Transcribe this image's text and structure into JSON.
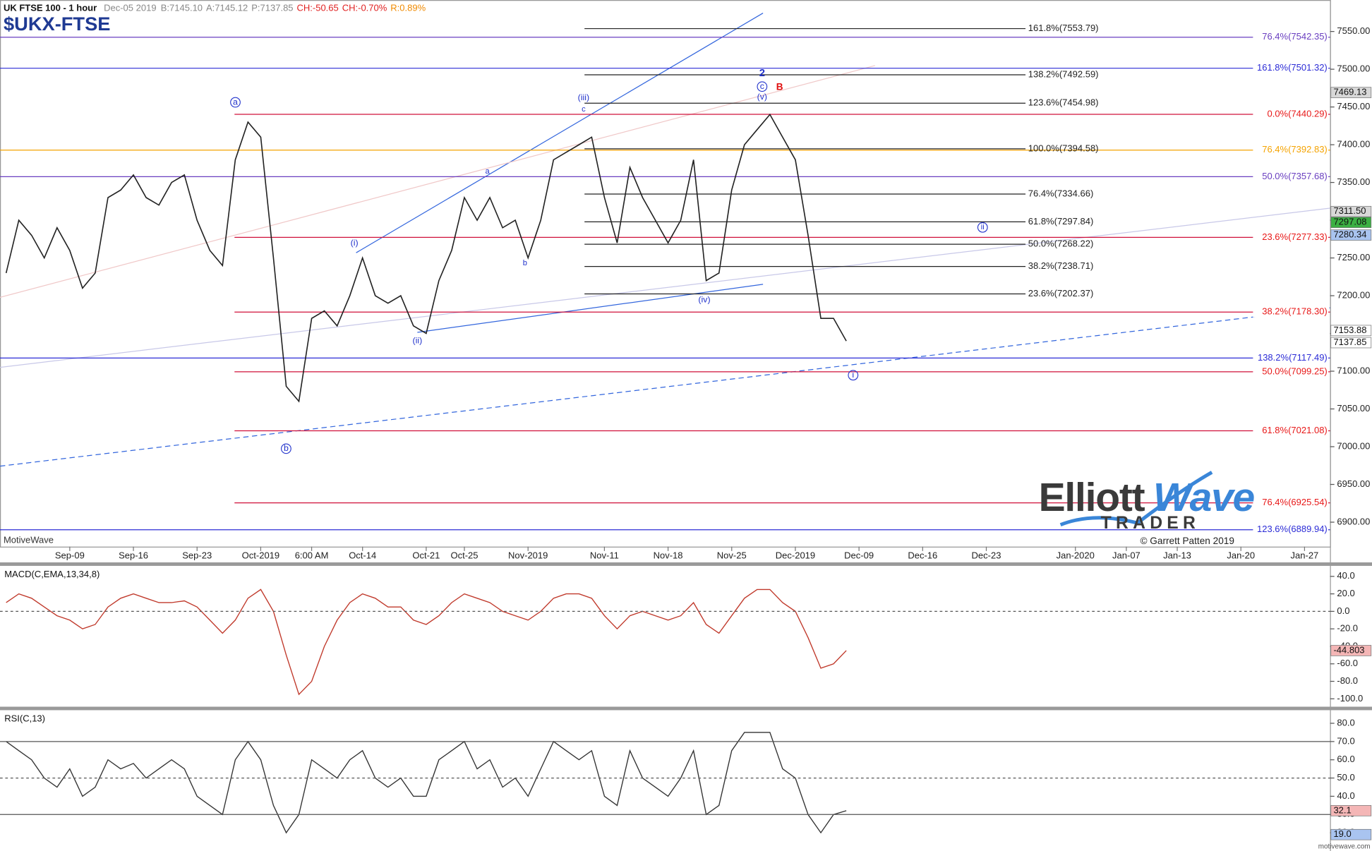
{
  "header": {
    "instrument": "UK FTSE 100 - 1 hour",
    "date": "Dec-05 2019",
    "bid": "B:7145.10",
    "ask": "A:7145.12",
    "price": "P:7137.85",
    "change": "CH:-50.65",
    "change_pct": "CH:-0.70%",
    "range": "R:0.89%"
  },
  "footer": "motivewave.com",
  "chart_data": [
    {
      "type": "line",
      "title": "$UKX-FTSE",
      "color": "#222222",
      "categories": [
        null,
        null,
        null,
        null,
        null,
        "Sep-09",
        null,
        null,
        null,
        null,
        "Sep-16",
        null,
        null,
        null,
        null,
        "Sep-23",
        null,
        null,
        null,
        null,
        "Oct-2019",
        null,
        null,
        null,
        "6:00 AM",
        null,
        null,
        null,
        "Oct-14",
        null,
        null,
        null,
        null,
        "Oct-21",
        null,
        null,
        "Oct-25",
        null,
        null,
        null,
        null,
        "Nov-2019",
        null,
        null,
        null,
        null,
        null,
        "Nov-11",
        null,
        null,
        null,
        null,
        "Nov-18",
        null,
        null,
        null,
        null,
        "Nov-25",
        null,
        null,
        null,
        null,
        "Dec-2019",
        null,
        null,
        null,
        null,
        "Dec-09",
        null,
        null,
        null,
        null,
        "Dec-16",
        null,
        null,
        null,
        null,
        "Dec-23",
        null,
        null,
        null,
        null,
        null,
        null,
        "Jan-2020",
        null,
        null,
        null,
        "Jan-07",
        null,
        null,
        null,
        "Jan-13",
        null,
        null,
        null,
        null,
        "Jan-20",
        null,
        null,
        null,
        null,
        "Jan-27",
        null
      ],
      "values": [
        7230,
        7300,
        7280,
        7250,
        7290,
        7260,
        7210,
        7230,
        7330,
        7340,
        7360,
        7330,
        7320,
        7350,
        7360,
        7300,
        7260,
        7240,
        7380,
        7430,
        7410,
        7250,
        7080,
        7060,
        7170,
        7180,
        7160,
        7200,
        7250,
        7200,
        7190,
        7200,
        7160,
        7150,
        7220,
        7260,
        7330,
        7300,
        7330,
        7290,
        7300,
        7250,
        7300,
        7380,
        7390,
        7400,
        7410,
        7330,
        7270,
        7370,
        7330,
        7300,
        7270,
        7300,
        7380,
        7220,
        7230,
        7340,
        7400,
        7420,
        7440,
        7410,
        7380,
        7280,
        7170,
        7170,
        7140,
        null,
        null,
        null,
        null,
        null,
        null,
        null,
        null,
        null,
        null,
        null,
        null,
        null,
        null,
        null,
        null,
        null,
        null,
        null,
        null,
        null,
        null,
        null,
        null,
        null,
        null,
        null,
        null,
        null,
        null,
        null,
        null,
        null,
        null,
        null,
        null,
        null
      ],
      "ylim": [
        6867.6,
        7591.7
      ],
      "yticks": [
        {
          "value": 6900,
          "label": "6900.00"
        },
        {
          "value": 6950,
          "label": "6950.00"
        },
        {
          "value": 7000,
          "label": "7000.00"
        },
        {
          "value": 7050,
          "label": "7050.00"
        },
        {
          "value": 7100,
          "label": "7100.00"
        },
        {
          "value": 7150,
          "label": "7150.00"
        },
        {
          "value": 7200,
          "label": "7200.00"
        },
        {
          "value": 7250,
          "label": "7250.00"
        },
        {
          "value": 7300,
          "label": "7300.00"
        },
        {
          "value": 7350,
          "label": "7350.00"
        },
        {
          "value": 7400,
          "label": "7400.00"
        },
        {
          "value": 7450,
          "label": "7450.00"
        },
        {
          "value": 7500,
          "label": "7500.00"
        },
        {
          "value": 7550,
          "label": "7550.00"
        }
      ],
      "levels": [
        {
          "value": 7542.35,
          "label": "76.4%(7542.35)",
          "color": "#6a3fc0"
        },
        {
          "value": 7501.32,
          "label": "161.8%(7501.32)",
          "color": "#2b2bd6"
        },
        {
          "value": 7440.29,
          "label": "0.0%(7440.29)",
          "color": "#d0103a"
        },
        {
          "value": 7392.83,
          "label": "76.4%(7392.83)",
          "color": "#f5a300"
        },
        {
          "value": 7357.68,
          "label": "50.0%(7357.68)",
          "color": "#6a3fc0"
        },
        {
          "value": 7277.33,
          "label": "23.6%(7277.33)",
          "color": "#d0103a"
        },
        {
          "value": 7178.3,
          "label": "38.2%(7178.30)",
          "color": "#d0103a"
        },
        {
          "value": 7117.49,
          "label": "138.2%(7117.49)",
          "color": "#2b2bd6"
        },
        {
          "value": 7099.25,
          "label": "50.0%(7099.25)",
          "color": "#d0103a"
        },
        {
          "value": 7021.08,
          "label": "61.8%(7021.08)",
          "color": "#d0103a"
        },
        {
          "value": 6925.54,
          "label": "76.4%(6925.54)",
          "color": "#d0103a"
        },
        {
          "value": 6889.94,
          "label": "123.6%(6889.94)",
          "color": "#2b2bd6"
        }
      ],
      "fib_levels": [
        {
          "value": 7553.79,
          "label": "161.8%(7553.79)"
        },
        {
          "value": 7492.59,
          "label": "138.2%(7492.59)"
        },
        {
          "value": 7454.98,
          "label": "123.6%(7454.98)"
        },
        {
          "value": 7394.58,
          "label": "100.0%(7394.58)"
        },
        {
          "value": 7334.66,
          "label": "76.4%(7334.66)"
        },
        {
          "value": 7297.84,
          "label": "61.8%(7297.84)"
        },
        {
          "value": 7268.22,
          "label": "50.0%(7268.22)"
        },
        {
          "value": 7238.71,
          "label": "38.2%(7238.71)"
        },
        {
          "value": 7202.37,
          "label": "23.6%(7202.37)"
        }
      ],
      "price_markers": [
        {
          "value": 7469.13,
          "label": "7469.13",
          "color": "#d8d8d8"
        },
        {
          "value": 7311.5,
          "label": "7311.50",
          "color": "#d8d8d8"
        },
        {
          "value": 7297.08,
          "label": "7297.08",
          "color": "#3cb043"
        },
        {
          "value": 7280.34,
          "label": "7280.34",
          "color": "#a9c4f0"
        },
        {
          "value": 7153.88,
          "label": "7153.88",
          "color": "#ffffff"
        },
        {
          "value": 7137.85,
          "label": "7137.85",
          "color": "#ffffff"
        }
      ],
      "annotations": [
        "a",
        "b",
        "(i)",
        "(ii)",
        "(iii)",
        "(iv)",
        "(v)",
        "c",
        "2",
        "B",
        "i",
        "ii",
        "a",
        "b",
        "c"
      ],
      "watermark": "MotiveWave",
      "logo": [
        "Elliott",
        "Wave",
        "TRADER"
      ],
      "copyright": "© Garrett Patten 2019"
    },
    {
      "type": "line",
      "title": "MACD(C,EMA,13,34,8)",
      "color": "#c0392b",
      "values": [
        10,
        20,
        15,
        5,
        -5,
        -10,
        -20,
        -15,
        5,
        15,
        20,
        15,
        10,
        10,
        12,
        5,
        -10,
        -25,
        -10,
        15,
        25,
        0,
        -50,
        -95,
        -80,
        -40,
        -10,
        10,
        20,
        15,
        5,
        5,
        -10,
        -15,
        -5,
        10,
        20,
        15,
        10,
        0,
        -5,
        -10,
        0,
        15,
        20,
        20,
        15,
        -5,
        -20,
        -5,
        0,
        -5,
        -10,
        -5,
        10,
        -15,
        -25,
        -5,
        15,
        25,
        25,
        10,
        0,
        -30,
        -65,
        -60,
        -44.8
      ],
      "ylim": [
        -109,
        51
      ],
      "yticks": [
        {
          "value": 40,
          "label": "40.0"
        },
        {
          "value": 20,
          "label": "20.0"
        },
        {
          "value": 0,
          "label": "0.0"
        },
        {
          "value": -20,
          "label": "-20.0"
        },
        {
          "value": -40,
          "label": "-40.0"
        },
        {
          "value": -60,
          "label": "-60.0"
        },
        {
          "value": -80,
          "label": "-80.0"
        },
        {
          "value": -100,
          "label": "-100.0"
        }
      ],
      "ref_lines": [
        {
          "value": 0,
          "style": "dashed"
        }
      ],
      "price_markers": [
        {
          "value": -44.803,
          "label": "-44.803",
          "color": "#f4b6b6"
        }
      ]
    },
    {
      "type": "line",
      "title": "RSI(C,13)",
      "color": "#333333",
      "values": [
        70,
        65,
        60,
        50,
        45,
        55,
        40,
        45,
        60,
        55,
        58,
        50,
        55,
        60,
        55,
        40,
        35,
        30,
        60,
        70,
        60,
        35,
        20,
        30,
        60,
        55,
        50,
        60,
        65,
        50,
        45,
        50,
        40,
        40,
        60,
        65,
        70,
        55,
        60,
        45,
        50,
        40,
        55,
        70,
        65,
        60,
        65,
        40,
        35,
        65,
        50,
        45,
        40,
        50,
        65,
        30,
        35,
        65,
        75,
        75,
        75,
        55,
        50,
        30,
        20,
        30,
        32.1
      ],
      "ylim": [
        12.4,
        86.7
      ],
      "yticks": [
        {
          "value": 20,
          "label": "20.0"
        },
        {
          "value": 30,
          "label": "30.0"
        },
        {
          "value": 40,
          "label": "40.0"
        },
        {
          "value": 50,
          "label": "50.0"
        },
        {
          "value": 60,
          "label": "60.0"
        },
        {
          "value": 70,
          "label": "70.0"
        },
        {
          "value": 80,
          "label": "80.0"
        }
      ],
      "ref_lines": [
        {
          "value": 70,
          "style": "solid"
        },
        {
          "value": 50,
          "style": "dashed"
        },
        {
          "value": 30,
          "style": "solid"
        }
      ],
      "price_markers": [
        {
          "value": 32.1,
          "label": "32.1",
          "color": "#f4b6b6"
        },
        {
          "value": 19.0,
          "label": "19.0",
          "color": "#a9c4f0"
        }
      ]
    }
  ]
}
